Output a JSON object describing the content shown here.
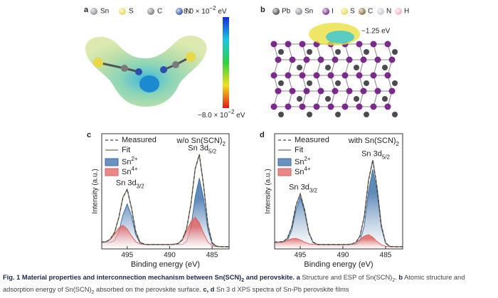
{
  "panel_a": {
    "label": "a",
    "legend": [
      {
        "name": "Sn",
        "color": "#8c8c99"
      },
      {
        "name": "S",
        "color": "#e8d84a"
      },
      {
        "name": "C",
        "color": "#7a7a7a"
      },
      {
        "name": "N",
        "color": "#2a4fb0"
      }
    ],
    "colorbar_max": {
      "text": "8.0 × 10",
      "sup": "−2",
      "unit": " eV"
    },
    "colorbar_min": {
      "text": "−8.0 × 10",
      "sup": "−2",
      "unit": " eV"
    }
  },
  "panel_b": {
    "label": "b",
    "legend": [
      {
        "name": "Pb",
        "color": "#4a4a4f"
      },
      {
        "name": "Sn",
        "color": "#8c8c99"
      },
      {
        "name": "I",
        "color": "#7a2a8a"
      },
      {
        "name": "S",
        "color": "#e8d84a"
      },
      {
        "name": "C",
        "color": "#8a6a3a"
      },
      {
        "name": "N",
        "color": "#c8c8d8"
      },
      {
        "name": "H",
        "color": "#f0b0c8"
      }
    ],
    "annotation": "−1.25 eV"
  },
  "chart_data": [
    {
      "type": "line",
      "panel_label": "c",
      "annotation": {
        "text": "w/o Sn(SCN)",
        "sub": "2"
      },
      "x_label": "Binding energy (eV)",
      "y_label": "Intensity (a.u.)",
      "x": [
        498,
        497.5,
        497,
        496.5,
        496,
        495.5,
        495,
        494.5,
        494,
        493.5,
        493,
        492.5,
        492,
        491.5,
        491,
        490.5,
        490,
        489.5,
        489,
        488.5,
        488,
        487.5,
        487,
        486.5,
        486,
        485.5,
        485,
        484.5,
        484,
        483.5,
        483
      ],
      "xlim": [
        498,
        483
      ],
      "xticks": [
        495,
        490,
        485
      ],
      "ylim": [
        0,
        105
      ],
      "series": [
        {
          "name": "Sn",
          "superscript": "2+",
          "color": "#3a6ea8",
          "style": "filled",
          "values": [
            6,
            6,
            6,
            7.6,
            15,
            31.1,
            41,
            30.1,
            13,
            5.6,
            4.1,
            4,
            4,
            4,
            4,
            4,
            4,
            4,
            4,
            4,
            6.7,
            19,
            47,
            64.5,
            46,
            17.5,
            4.7,
            2.2,
            2,
            2,
            2
          ]
        },
        {
          "name": "Sn",
          "superscript": "4+",
          "color": "#e06060",
          "style": "filled",
          "values": [
            6,
            6.6,
            8.7,
            13.4,
            19.1,
            21.5,
            18.1,
            11.9,
            6.7,
            4.6,
            4.1,
            4,
            4,
            4,
            4,
            4,
            4,
            4.2,
            5,
            8.4,
            16,
            24.8,
            29,
            23.8,
            14,
            6.4,
            3,
            2.2,
            2,
            2,
            2
          ]
        },
        {
          "name": "Fit",
          "color": "#6f6f5a",
          "style": "solid",
          "values": [
            6,
            6.6,
            8.7,
            15,
            28.1,
            47.1,
            54.1,
            37.5,
            15.7,
            6.2,
            4.2,
            4,
            4,
            4,
            4,
            4,
            4,
            4.2,
            5,
            8.4,
            18.7,
            40.3,
            73,
            85.8,
            58,
            21.9,
            5.7,
            2.4,
            2,
            2,
            2
          ]
        },
        {
          "name": "Measured",
          "color": "#444444",
          "style": "dashed",
          "values": [
            6.3,
            6.5,
            9,
            14.6,
            28.5,
            46.6,
            54.6,
            37,
            16.2,
            6,
            4.4,
            3.9,
            4.1,
            4,
            3.9,
            4.1,
            4,
            4.3,
            4.8,
            8.7,
            18.3,
            40.8,
            72.5,
            86.3,
            57.5,
            22.3,
            5.5,
            2.5,
            2.1,
            1.9,
            2
          ]
        }
      ],
      "peak_labels": [
        {
          "text": "Sn 3d",
          "sub": "3/2"
        },
        {
          "text": "Sn 3d",
          "sub": "5/2"
        }
      ]
    },
    {
      "type": "line",
      "panel_label": "d",
      "annotation": {
        "text": "with Sn(SCN)",
        "sub": "2"
      },
      "x_label": "Binding energy (eV)",
      "y_label": "Intensity (a.u.)",
      "x": [
        498,
        497.5,
        497,
        496.5,
        496,
        495.5,
        495,
        494.5,
        494,
        493.5,
        493,
        492.5,
        492,
        491.5,
        491,
        490.5,
        490,
        489.5,
        489,
        488.5,
        488,
        487.5,
        487,
        486.5,
        486,
        485.5,
        485,
        484.5,
        484,
        483.5,
        483
      ],
      "xlim": [
        498,
        483
      ],
      "xticks": [
        495,
        490,
        485
      ],
      "ylim": [
        0,
        105
      ],
      "series": [
        {
          "name": "Sn",
          "superscript": "2+",
          "color": "#3a6ea8",
          "style": "filled",
          "values": [
            6,
            6,
            6,
            7.8,
            16.5,
            35.3,
            47,
            34.3,
            14.5,
            5.8,
            4.2,
            4,
            4,
            4,
            4,
            4,
            4,
            4,
            4,
            4,
            7.1,
            21,
            52.7,
            72.5,
            51.7,
            19.5,
            5.1,
            2.2,
            2,
            2,
            2
          ]
        },
        {
          "name": "Sn",
          "superscript": "4+",
          "color": "#e06060",
          "style": "filled",
          "values": [
            6,
            6.2,
            6.7,
            7.8,
            9.3,
            9.5,
            8.3,
            6.3,
            4.7,
            4.2,
            4,
            4,
            4,
            4,
            4,
            4,
            4,
            4,
            4.4,
            5.7,
            8.6,
            11.7,
            13,
            10.7,
            6.6,
            3.7,
            2.4,
            2,
            2,
            2,
            2
          ]
        },
        {
          "name": "Fit",
          "color": "#6f6f5a",
          "style": "solid",
          "values": [
            6,
            6.2,
            6.7,
            9.6,
            19.8,
            39.3,
            50.3,
            36.1,
            15.2,
            6,
            4.2,
            4,
            4,
            4,
            4,
            4,
            4,
            4,
            4.4,
            5.7,
            11.7,
            29.2,
            62.7,
            80.7,
            56.3,
            21.2,
            5.5,
            2.2,
            2,
            2,
            2
          ]
        },
        {
          "name": "Measured",
          "color": "#444444",
          "style": "dashed",
          "values": [
            6.2,
            6.4,
            6.5,
            9.9,
            19.5,
            39.8,
            49.8,
            36.5,
            15,
            6.2,
            4.1,
            4.1,
            3.9,
            4,
            4.1,
            3.9,
            4,
            4.1,
            4.3,
            5.9,
            11.4,
            29.6,
            62.2,
            81.2,
            55.8,
            21.6,
            5.3,
            2.3,
            2.1,
            1.9,
            2
          ]
        }
      ],
      "peak_labels": [
        {
          "text": "Sn 3d",
          "sub": "3/2"
        },
        {
          "text": "Sn 3d",
          "sub": "5/2"
        }
      ]
    }
  ],
  "caption": [
    {
      "text": "Fig. 1 Material properties and interconnection mechanism between Sn(SCN)",
      "style": "bold"
    },
    {
      "text": "2",
      "style": "boldsub"
    },
    {
      "text": " and perovskite.",
      "style": "bold"
    },
    {
      "text": " a",
      "style": "bold"
    },
    {
      "text": " Structure and ESP of Sn(SCN)",
      "style": "normal"
    },
    {
      "text": "2",
      "style": "sub"
    },
    {
      "text": ". ",
      "style": "normal"
    },
    {
      "text": "b",
      "style": "bold"
    },
    {
      "text": " Atomic structure and adsorption energy of Sn(SCN)",
      "style": "normal"
    },
    {
      "text": "2",
      "style": "sub"
    },
    {
      "text": " absorbed on the perovskite surface. ",
      "style": "normal"
    },
    {
      "text": "c, d",
      "style": "bold"
    },
    {
      "text": " Sn 3 d XPS spectra of Sn-Pb perovskite films",
      "style": "normal"
    }
  ]
}
